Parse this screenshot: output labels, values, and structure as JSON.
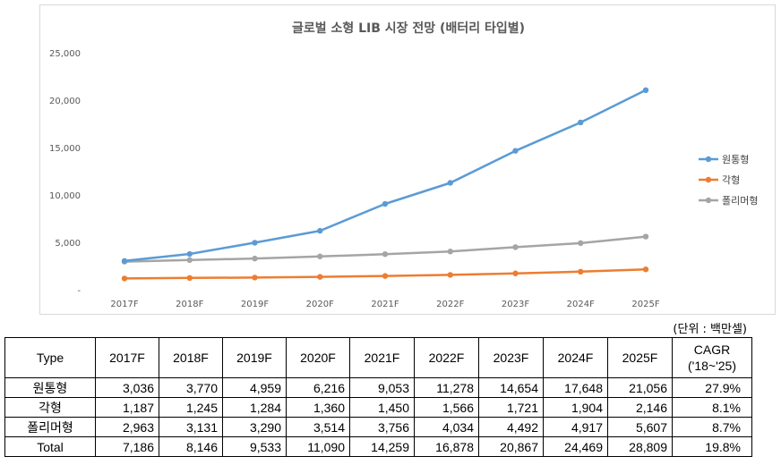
{
  "chart_data": {
    "type": "line",
    "title": "글로벌 소형 LIB 시장 전망 (배터리 타입별)",
    "categories": [
      "2017F",
      "2018F",
      "2019F",
      "2020F",
      "2021F",
      "2022F",
      "2023F",
      "2024F",
      "2025F"
    ],
    "series": [
      {
        "name": "원통형",
        "color": "#5b9bd5",
        "values": [
          3036,
          3770,
          4959,
          6216,
          9053,
          11278,
          14654,
          17648,
          21056
        ]
      },
      {
        "name": "각형",
        "color": "#ed7d31",
        "values": [
          1187,
          1245,
          1284,
          1360,
          1450,
          1566,
          1721,
          1904,
          2146
        ]
      },
      {
        "name": "폴리머형",
        "color": "#a5a5a5",
        "values": [
          2963,
          3131,
          3290,
          3514,
          3756,
          4034,
          4492,
          4917,
          5607
        ]
      }
    ],
    "yticks": [
      "-",
      "5,000",
      "10,000",
      "15,000",
      "20,000",
      "25,000"
    ],
    "ylim": [
      0,
      25000
    ],
    "legend_position": "right",
    "grid": false
  },
  "unit_note": "(단위 : 백만셀)",
  "table": {
    "header_type": "Type",
    "years": [
      "2017F",
      "2018F",
      "2019F",
      "2020F",
      "2021F",
      "2022F",
      "2023F",
      "2024F",
      "2025F"
    ],
    "cagr_label": "CAGR",
    "cagr_period": "('18~'25)",
    "rows": [
      {
        "label": "원통형",
        "values": [
          "3,036",
          "3,770",
          "4,959",
          "6,216",
          "9,053",
          "11,278",
          "14,654",
          "17,648",
          "21,056"
        ],
        "cagr": "27.9%"
      },
      {
        "label": "각형",
        "values": [
          "1,187",
          "1,245",
          "1,284",
          "1,360",
          "1,450",
          "1,566",
          "1,721",
          "1,904",
          "2,146"
        ],
        "cagr": "8.1%"
      },
      {
        "label": "폴리머형",
        "values": [
          "2,963",
          "3,131",
          "3,290",
          "3,514",
          "3,756",
          "4,034",
          "4,492",
          "4,917",
          "5,607"
        ],
        "cagr": "8.7%"
      },
      {
        "label": "Total",
        "values": [
          "7,186",
          "8,146",
          "9,533",
          "11,090",
          "14,259",
          "16,878",
          "20,867",
          "24,469",
          "28,809"
        ],
        "cagr": "19.8%"
      }
    ]
  }
}
